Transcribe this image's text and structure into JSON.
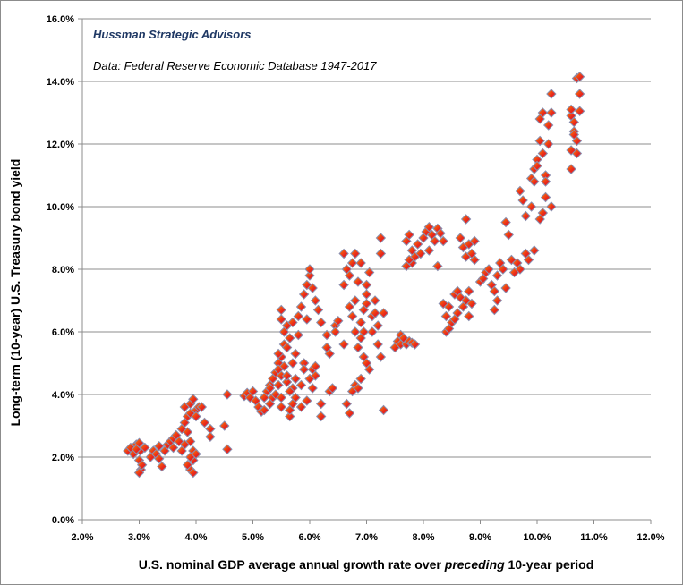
{
  "annotations": {
    "source_name": "Hussman Strategic Advisors",
    "data_note": "Data: Federal Reserve Economic Database 1947-2017"
  },
  "axes": {
    "y_title": "Long-term (10-year) U.S. Treasury bond yield",
    "x_title_before": "U.S. nominal GDP average annual growth rate over ",
    "x_title_emph": "preceding",
    "x_title_after": " 10-year period"
  },
  "chart_data": {
    "type": "scatter",
    "xlim": [
      2.0,
      12.0
    ],
    "ylim": [
      0.0,
      16.0
    ],
    "x_ticks": [
      2,
      3,
      4,
      5,
      6,
      7,
      8,
      9,
      10,
      11,
      12
    ],
    "y_ticks": [
      0,
      2,
      4,
      6,
      8,
      10,
      12,
      14,
      16
    ],
    "x_tick_labels": [
      "2.0%",
      "3.0%",
      "4.0%",
      "5.0%",
      "6.0%",
      "7.0%",
      "8.0%",
      "9.0%",
      "10.0%",
      "11.0%",
      "12.0%"
    ],
    "y_tick_labels": [
      "0.0%",
      "2.0%",
      "4.0%",
      "6.0%",
      "8.0%",
      "10.0%",
      "12.0%",
      "14.0%",
      "16.0%"
    ],
    "grid": "horizontal",
    "legend": "none",
    "marker": "diamond",
    "marker_colors": [
      "#ff8c00",
      "#e8261c",
      "#8a8fb0"
    ],
    "points": [
      [
        2.8,
        2.2
      ],
      [
        2.85,
        2.3
      ],
      [
        2.9,
        2.1
      ],
      [
        2.95,
        2.4
      ],
      [
        3.0,
        2.45
      ],
      [
        3.02,
        2.2
      ],
      [
        3.0,
        1.9
      ],
      [
        3.03,
        1.6
      ],
      [
        3.0,
        1.5
      ],
      [
        3.05,
        1.75
      ],
      [
        3.1,
        2.3
      ],
      [
        2.95,
        2.25
      ],
      [
        3.2,
        2.0
      ],
      [
        3.25,
        2.2
      ],
      [
        3.3,
        2.1
      ],
      [
        3.35,
        1.95
      ],
      [
        3.4,
        1.7
      ],
      [
        3.35,
        2.35
      ],
      [
        3.45,
        2.2
      ],
      [
        3.5,
        2.4
      ],
      [
        3.55,
        2.5
      ],
      [
        3.6,
        2.6
      ],
      [
        3.65,
        2.7
      ],
      [
        3.7,
        2.5
      ],
      [
        3.6,
        2.3
      ],
      [
        3.75,
        2.9
      ],
      [
        3.8,
        3.1
      ],
      [
        3.85,
        3.3
      ],
      [
        3.8,
        3.6
      ],
      [
        3.85,
        2.8
      ],
      [
        3.9,
        3.4
      ],
      [
        3.9,
        3.7
      ],
      [
        3.95,
        3.85
      ],
      [
        3.9,
        2.5
      ],
      [
        3.95,
        2.2
      ],
      [
        3.95,
        1.9
      ],
      [
        3.9,
        1.6
      ],
      [
        3.95,
        1.5
      ],
      [
        3.85,
        1.75
      ],
      [
        3.9,
        2.0
      ],
      [
        4.0,
        2.1
      ],
      [
        4.0,
        3.5
      ],
      [
        4.05,
        3.6
      ],
      [
        4.0,
        3.3
      ],
      [
        3.8,
        2.4
      ],
      [
        3.75,
        2.2
      ],
      [
        4.1,
        3.6
      ],
      [
        4.15,
        3.1
      ],
      [
        4.25,
        2.9
      ],
      [
        4.25,
        2.65
      ],
      [
        4.5,
        3.0
      ],
      [
        4.55,
        2.25
      ],
      [
        4.55,
        4.0
      ],
      [
        4.85,
        3.95
      ],
      [
        4.9,
        4.05
      ],
      [
        4.95,
        3.9
      ],
      [
        5.0,
        4.1
      ],
      [
        5.05,
        3.8
      ],
      [
        5.1,
        3.6
      ],
      [
        5.15,
        3.45
      ],
      [
        5.2,
        3.9
      ],
      [
        5.25,
        4.1
      ],
      [
        5.3,
        3.7
      ],
      [
        5.3,
        4.3
      ],
      [
        5.35,
        4.5
      ],
      [
        5.35,
        3.9
      ],
      [
        5.4,
        4.0
      ],
      [
        5.4,
        4.7
      ],
      [
        5.45,
        5.0
      ],
      [
        5.45,
        4.3
      ],
      [
        5.5,
        5.2
      ],
      [
        5.5,
        4.6
      ],
      [
        5.5,
        3.9
      ],
      [
        5.5,
        3.6
      ],
      [
        5.55,
        5.6
      ],
      [
        5.55,
        6.0
      ],
      [
        5.55,
        4.9
      ],
      [
        5.6,
        5.5
      ],
      [
        5.6,
        6.2
      ],
      [
        5.6,
        4.4
      ],
      [
        5.65,
        3.3
      ],
      [
        5.65,
        3.5
      ],
      [
        5.65,
        5.8
      ],
      [
        5.7,
        6.3
      ],
      [
        5.7,
        5.0
      ],
      [
        5.7,
        4.2
      ],
      [
        5.75,
        3.9
      ],
      [
        5.75,
        5.3
      ],
      [
        5.8,
        5.9
      ],
      [
        5.8,
        6.5
      ],
      [
        5.85,
        6.8
      ],
      [
        5.85,
        4.3
      ],
      [
        5.9,
        7.2
      ],
      [
        5.9,
        5.0
      ],
      [
        5.95,
        7.5
      ],
      [
        5.95,
        6.4
      ],
      [
        6.0,
        7.8
      ],
      [
        6.0,
        8.0
      ],
      [
        6.05,
        7.4
      ],
      [
        6.0,
        4.5
      ],
      [
        6.05,
        4.8
      ],
      [
        6.05,
        4.2
      ],
      [
        6.1,
        4.6
      ],
      [
        6.1,
        4.9
      ],
      [
        5.85,
        3.6
      ],
      [
        5.95,
        3.8
      ],
      [
        5.5,
        6.7
      ],
      [
        5.5,
        6.4
      ],
      [
        5.45,
        5.3
      ],
      [
        5.45,
        4.8
      ],
      [
        5.3,
        4.2
      ],
      [
        5.2,
        3.5
      ],
      [
        5.6,
        4.6
      ],
      [
        5.65,
        4.1
      ],
      [
        5.7,
        3.7
      ],
      [
        5.75,
        4.5
      ],
      [
        5.9,
        4.8
      ],
      [
        6.1,
        7.0
      ],
      [
        6.15,
        6.7
      ],
      [
        6.2,
        6.3
      ],
      [
        6.2,
        3.7
      ],
      [
        6.2,
        3.3
      ],
      [
        6.3,
        5.9
      ],
      [
        6.3,
        5.5
      ],
      [
        6.35,
        5.3
      ],
      [
        6.35,
        4.1
      ],
      [
        6.4,
        4.2
      ],
      [
        6.45,
        6.2
      ],
      [
        6.45,
        6.0
      ],
      [
        6.5,
        6.35
      ],
      [
        6.6,
        8.5
      ],
      [
        6.65,
        8.0
      ],
      [
        6.6,
        7.5
      ],
      [
        6.7,
        7.8
      ],
      [
        6.75,
        8.2
      ],
      [
        6.8,
        8.5
      ],
      [
        6.85,
        7.6
      ],
      [
        6.8,
        7.0
      ],
      [
        6.75,
        6.5
      ],
      [
        6.7,
        6.8
      ],
      [
        6.6,
        5.6
      ],
      [
        6.65,
        3.7
      ],
      [
        6.7,
        3.4
      ],
      [
        6.75,
        4.1
      ],
      [
        6.8,
        4.3
      ],
      [
        6.85,
        4.2
      ],
      [
        6.9,
        4.5
      ],
      [
        6.85,
        5.5
      ],
      [
        6.9,
        5.8
      ],
      [
        6.8,
        6.0
      ],
      [
        6.9,
        6.3
      ],
      [
        6.95,
        6.7
      ],
      [
        7.0,
        6.9
      ],
      [
        7.0,
        7.5
      ],
      [
        7.05,
        7.9
      ],
      [
        7.0,
        7.2
      ],
      [
        6.95,
        5.2
      ],
      [
        7.0,
        5.0
      ],
      [
        7.05,
        4.8
      ],
      [
        7.1,
        6.0
      ],
      [
        7.1,
        6.5
      ],
      [
        7.15,
        7.0
      ],
      [
        7.15,
        6.6
      ],
      [
        7.2,
        6.2
      ],
      [
        7.2,
        5.6
      ],
      [
        7.25,
        5.2
      ],
      [
        7.25,
        9.0
      ],
      [
        7.25,
        8.5
      ],
      [
        7.3,
        6.6
      ],
      [
        7.3,
        3.5
      ],
      [
        6.9,
        8.2
      ],
      [
        6.95,
        6.0
      ],
      [
        7.5,
        5.5
      ],
      [
        7.55,
        5.7
      ],
      [
        7.6,
        5.6
      ],
      [
        7.6,
        5.9
      ],
      [
        7.65,
        5.8
      ],
      [
        7.7,
        5.6
      ],
      [
        7.75,
        5.7
      ],
      [
        7.8,
        5.65
      ],
      [
        7.85,
        5.6
      ],
      [
        7.7,
        8.9
      ],
      [
        7.75,
        9.1
      ],
      [
        7.8,
        8.6
      ],
      [
        7.8,
        8.2
      ],
      [
        7.85,
        8.4
      ],
      [
        7.9,
        8.8
      ],
      [
        7.7,
        8.1
      ],
      [
        7.75,
        8.3
      ],
      [
        7.95,
        8.5
      ],
      [
        8.0,
        9.0
      ],
      [
        8.05,
        9.2
      ],
      [
        8.1,
        9.35
      ],
      [
        8.15,
        9.1
      ],
      [
        8.2,
        8.9
      ],
      [
        8.25,
        9.3
      ],
      [
        8.3,
        9.15
      ],
      [
        8.35,
        8.9
      ],
      [
        8.1,
        8.6
      ],
      [
        8.25,
        8.1
      ],
      [
        8.35,
        6.9
      ],
      [
        8.4,
        6.5
      ],
      [
        8.4,
        6.0
      ],
      [
        8.45,
        6.8
      ],
      [
        8.5,
        6.3
      ],
      [
        8.55,
        7.2
      ],
      [
        8.6,
        6.6
      ],
      [
        8.6,
        7.3
      ],
      [
        8.65,
        7.1
      ],
      [
        8.7,
        6.8
      ],
      [
        8.75,
        7.0
      ],
      [
        8.8,
        7.3
      ],
      [
        8.8,
        6.5
      ],
      [
        8.85,
        6.9
      ],
      [
        8.65,
        9.0
      ],
      [
        8.7,
        8.7
      ],
      [
        8.75,
        8.4
      ],
      [
        8.8,
        8.8
      ],
      [
        8.75,
        9.6
      ],
      [
        8.85,
        8.5
      ],
      [
        8.9,
        8.3
      ],
      [
        8.9,
        8.9
      ],
      [
        8.45,
        6.1
      ],
      [
        8.55,
        6.4
      ],
      [
        9.0,
        7.6
      ],
      [
        9.05,
        7.7
      ],
      [
        9.1,
        7.9
      ],
      [
        9.15,
        8.0
      ],
      [
        9.2,
        7.5
      ],
      [
        9.25,
        7.3
      ],
      [
        9.25,
        6.7
      ],
      [
        9.3,
        7.0
      ],
      [
        9.3,
        7.8
      ],
      [
        9.35,
        8.2
      ],
      [
        9.4,
        8.0
      ],
      [
        9.45,
        7.4
      ],
      [
        9.45,
        9.5
      ],
      [
        9.5,
        9.1
      ],
      [
        9.55,
        8.3
      ],
      [
        9.6,
        7.9
      ],
      [
        9.65,
        8.2
      ],
      [
        9.7,
        8.0
      ],
      [
        9.7,
        10.5
      ],
      [
        9.75,
        10.2
      ],
      [
        9.8,
        9.7
      ],
      [
        9.8,
        8.5
      ],
      [
        9.85,
        8.3
      ],
      [
        9.9,
        10.0
      ],
      [
        9.9,
        10.9
      ],
      [
        9.95,
        11.2
      ],
      [
        9.95,
        8.6
      ],
      [
        10.0,
        11.5
      ],
      [
        10.0,
        11.3
      ],
      [
        10.05,
        12.1
      ],
      [
        10.05,
        12.8
      ],
      [
        10.1,
        13.0
      ],
      [
        10.1,
        11.7
      ],
      [
        10.15,
        11.0
      ],
      [
        10.15,
        10.3
      ],
      [
        10.2,
        12.0
      ],
      [
        10.2,
        12.6
      ],
      [
        10.25,
        13.6
      ],
      [
        10.25,
        13.0
      ],
      [
        10.25,
        10.0
      ],
      [
        10.1,
        9.8
      ],
      [
        10.05,
        9.6
      ],
      [
        9.95,
        10.8
      ],
      [
        10.15,
        10.8
      ],
      [
        10.6,
        11.2
      ],
      [
        10.6,
        12.9
      ],
      [
        10.6,
        13.1
      ],
      [
        10.65,
        12.7
      ],
      [
        10.65,
        12.4
      ],
      [
        10.7,
        12.1
      ],
      [
        10.7,
        11.7
      ],
      [
        10.7,
        14.1
      ],
      [
        10.75,
        14.15
      ],
      [
        10.75,
        13.6
      ],
      [
        10.75,
        13.05
      ],
      [
        10.65,
        12.3
      ],
      [
        10.6,
        11.8
      ]
    ]
  }
}
